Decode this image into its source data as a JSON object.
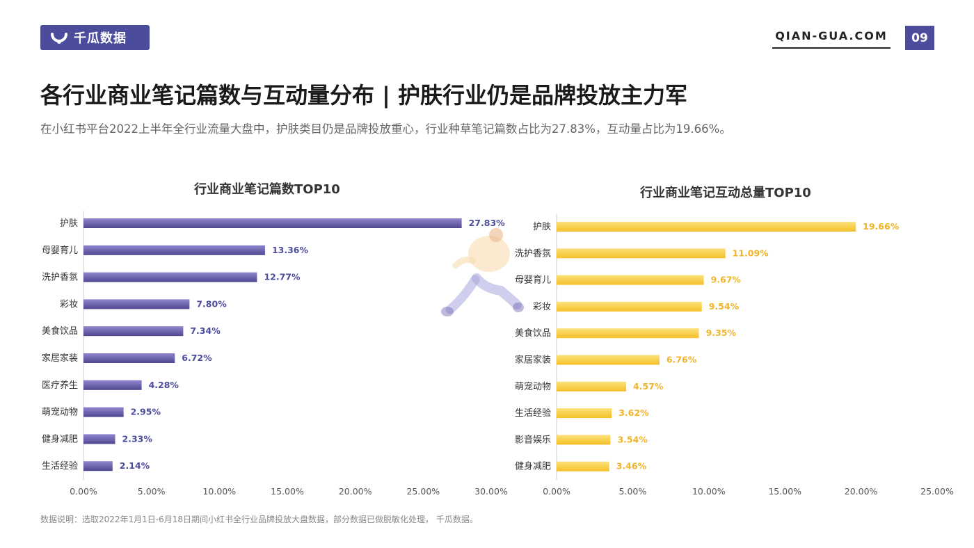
{
  "header": {
    "logo_text": "千瓜数据",
    "site": "QIAN-GUA.COM",
    "page_number": "09"
  },
  "title": "各行业商业笔记篇数与互动量分布 | 护肤行业仍是品牌投放主力军",
  "subtitle": "在小红书平台2022上半年全行业流量大盘中，护肤类目仍是品牌投放重心，行业种草笔记篇数占比为27.83%，互动量占比为19.66%。",
  "footnote": "数据说明：选取2022年1月1日-6月18日期间小红书全行业品牌投放大盘数据，部分数据已做脱敏化处理， 千瓜数据。",
  "colors": {
    "brand": "#4c4c9c",
    "bar1": "#6e64b4",
    "bar2": "#f5c731"
  },
  "chart_data": [
    {
      "type": "bar",
      "orientation": "horizontal",
      "title": "行业商业笔记篇数TOP10",
      "categories": [
        "护肤",
        "母婴育儿",
        "洗护香氛",
        "彩妆",
        "美食饮品",
        "家居家装",
        "医疗养生",
        "萌宠动物",
        "健身减肥",
        "生活经验"
      ],
      "values": [
        27.83,
        13.36,
        12.77,
        7.8,
        7.34,
        6.72,
        4.28,
        2.95,
        2.33,
        2.14
      ],
      "labels": [
        "27.83%",
        "13.36%",
        "12.77%",
        "7.80%",
        "7.34%",
        "6.72%",
        "4.28%",
        "2.95%",
        "2.33%",
        "2.14%"
      ],
      "xlim": [
        0,
        30
      ],
      "ticks": [
        "0.00%",
        "5.00%",
        "10.00%",
        "15.00%",
        "20.00%",
        "25.00%",
        "30.00%"
      ],
      "grid": false
    },
    {
      "type": "bar",
      "orientation": "horizontal",
      "title": "行业商业笔记互动总量TOP10",
      "categories": [
        "护肤",
        "洗护香氛",
        "母婴育儿",
        "彩妆",
        "美食饮品",
        "家居家装",
        "萌宠动物",
        "生活经验",
        "影音娱乐",
        "健身减肥"
      ],
      "values": [
        19.66,
        11.09,
        9.67,
        9.54,
        9.35,
        6.76,
        4.57,
        3.62,
        3.54,
        3.46
      ],
      "labels": [
        "19.66%",
        "11.09%",
        "9.67%",
        "9.54%",
        "9.35%",
        "6.76%",
        "4.57%",
        "3.62%",
        "3.54%",
        "3.46%"
      ],
      "xlim": [
        0,
        25
      ],
      "ticks": [
        "0.00%",
        "5.00%",
        "10.00%",
        "15.00%",
        "20.00%",
        "25.00%"
      ],
      "grid": false
    }
  ]
}
